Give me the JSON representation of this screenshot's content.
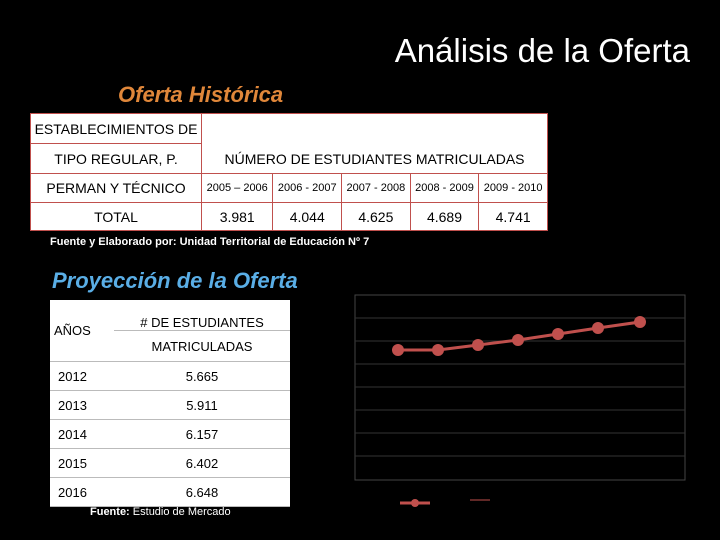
{
  "title": "Análisis de la Oferta",
  "historic": {
    "title": "Oferta Histórica",
    "table": {
      "head_left": [
        "ESTABLECIMIENTOS DE",
        "TIPO REGULAR, P.",
        "PERMAN Y TÉCNICO"
      ],
      "head_main": "NÚMERO DE ESTUDIANTES MATRICULADAS",
      "years": [
        "2005 – 2006",
        "2006 - 2007",
        "2007 - 2008",
        "2008 - 2009",
        "2009 - 2010"
      ],
      "row_label": "TOTAL",
      "values": [
        "3.981",
        "4.044",
        "4.625",
        "4.689",
        "4.741"
      ]
    },
    "source": "Fuente y Elaborado por: Unidad Territorial de Educación Nº 7"
  },
  "projection": {
    "title": "Proyección de la Oferta",
    "table": {
      "head_left": "AÑOS",
      "head_main": [
        "# DE ESTUDIANTES",
        "MATRICULADAS"
      ],
      "rows": [
        [
          "2012",
          "5.665"
        ],
        [
          "2013",
          "5.911"
        ],
        [
          "2014",
          "6.157"
        ],
        [
          "2015",
          "6.402"
        ],
        [
          "2016",
          "6.648"
        ]
      ]
    },
    "source_label": "Fuente:",
    "source": "Estudio de Mercado"
  }
}
